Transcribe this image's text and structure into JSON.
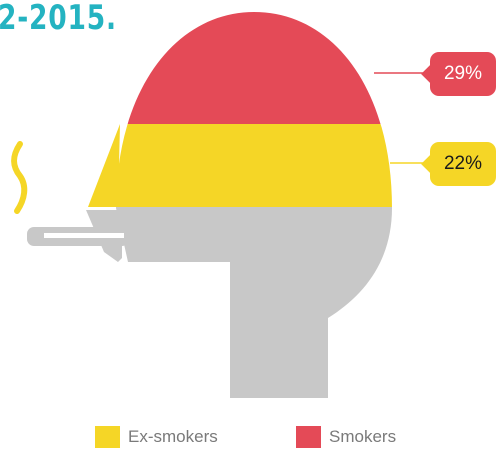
{
  "title": "2-2015.",
  "colors": {
    "title": "#24b3c1",
    "smokers": "#e44a57",
    "ex_smokers": "#f5d626",
    "non_smokers": "#c8c8c8",
    "smoke": "#f5d626"
  },
  "chart_data": {
    "type": "pie",
    "categories": [
      "Smokers",
      "Ex-smokers"
    ],
    "values": [
      29,
      22
    ],
    "unit": "%",
    "labels": [
      "29%",
      "22%"
    ],
    "legend": [
      "Ex-smokers",
      "Smokers"
    ],
    "legend_position": "bottom"
  },
  "icons": [
    "head-silhouette-icon",
    "cigarette-icon",
    "smoke-icon"
  ]
}
